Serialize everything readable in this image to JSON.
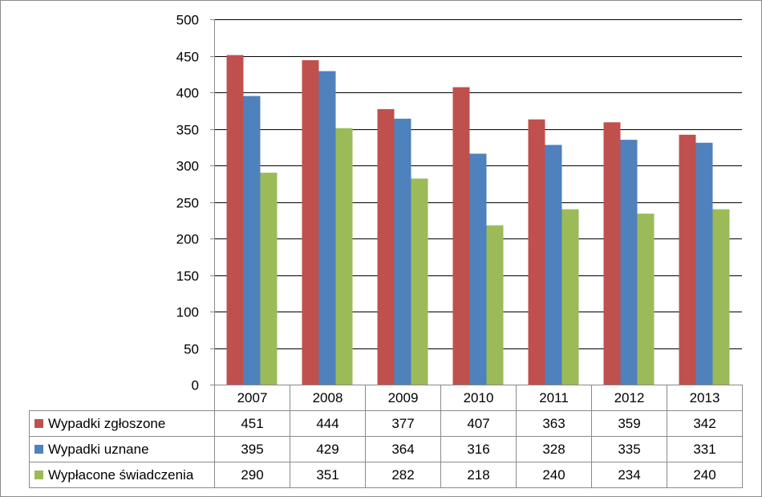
{
  "chart_data": {
    "type": "bar",
    "categories": [
      "2007",
      "2008",
      "2009",
      "2010",
      "2011",
      "2012",
      "2013"
    ],
    "series": [
      {
        "name": "Wypadki zgłoszone",
        "color": "#C0504D",
        "values": [
          451,
          444,
          377,
          407,
          363,
          359,
          342
        ]
      },
      {
        "name": "Wypadki uznane",
        "color": "#4F81BD",
        "values": [
          395,
          429,
          364,
          316,
          328,
          335,
          331
        ]
      },
      {
        "name": "Wypłacone świadczenia",
        "color": "#9BBB59",
        "values": [
          290,
          351,
          282,
          218,
          240,
          234,
          240
        ]
      }
    ],
    "ylim": [
      0,
      500
    ],
    "yticks": [
      "0",
      "50",
      "100",
      "150",
      "200",
      "250",
      "300",
      "350",
      "400",
      "450",
      "500"
    ],
    "grid": true,
    "legend": "data table below the chart with colored keys",
    "title": "",
    "xlabel": "",
    "ylabel": ""
  }
}
